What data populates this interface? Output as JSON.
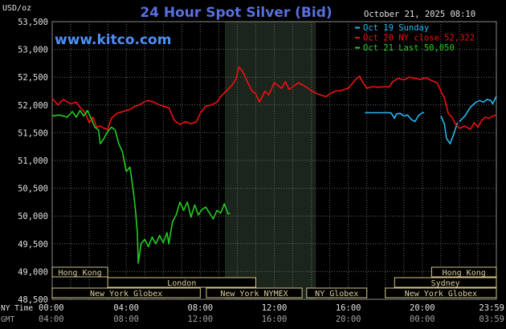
{
  "chart_data": {
    "type": "line",
    "title": "24 Hour Spot Silver (Bid)",
    "watermark": "www.kitco.com",
    "ylabel": "USD/oz",
    "date_label": "October 21, 2025 08:10",
    "ylim": [
      48500,
      53500
    ],
    "ytick_values": [
      48500,
      49000,
      49500,
      50000,
      50500,
      51000,
      51500,
      52000,
      52500,
      53000,
      53500
    ],
    "ytick_labels": [
      "48,500",
      "49,000",
      "49,500",
      "50,000",
      "50,500",
      "51,000",
      "51,500",
      "52,000",
      "52,500",
      "53,000",
      "53,500"
    ],
    "xlim": [
      0,
      24
    ],
    "x_unit": "hours (NY time)",
    "xtick_values": [
      0,
      4,
      8,
      12,
      16,
      20,
      24
    ],
    "row_labels": {
      "ny": "NY Time",
      "gmt": "GMT"
    },
    "xtick_labels_ny": [
      "00:00",
      "04:00",
      "08:00",
      "12:00",
      "16:00",
      "20:00",
      "23:59"
    ],
    "xtick_labels_gmt": [
      "04:00",
      "08:00",
      "12:00",
      "16:00",
      "20:00",
      "00:00",
      "03:59"
    ],
    "grid": true,
    "legend_position": "top-right",
    "nymex_shading": [
      9.33,
      14.25
    ],
    "colors": {
      "background": "#000000",
      "grid": "#666666",
      "axis_text": "#e0e0e0",
      "title": "#5a6fe0",
      "watermark": "#4f8ff5",
      "shading": "#1c251c",
      "session_fill": "#000000",
      "session_border": "#d2c48a",
      "session_text": "#d8cfa0"
    },
    "markets": [
      {
        "label": "Hong Kong",
        "start": 0,
        "end": 3,
        "row": 0
      },
      {
        "label": "London",
        "start": 3,
        "end": 11,
        "row": 1
      },
      {
        "label": "New York Globex",
        "start": 0,
        "end": 8,
        "row": 2
      },
      {
        "label": "New York NYMEX",
        "start": 8.33,
        "end": 13.5,
        "row": 2
      },
      {
        "label": "NY Globex",
        "start": 13.75,
        "end": 17,
        "row": 2
      },
      {
        "label": "Hong Kong",
        "start": 20.5,
        "end": 24,
        "row": 0
      },
      {
        "label": "Sydney",
        "start": 18.5,
        "end": 24,
        "row": 1
      },
      {
        "label": "New York Globex",
        "start": 18,
        "end": 24,
        "row": 2
      }
    ],
    "series": [
      {
        "name": "Oct 19 Sunday",
        "color": "#29b6f0",
        "segments": [
          [
            [
              16.9,
              51860
            ],
            [
              17.3,
              51860
            ],
            [
              17.6,
              51860
            ],
            [
              18.0,
              51860
            ],
            [
              18.3,
              51860
            ],
            [
              18.5,
              51760
            ],
            [
              18.6,
              51840
            ],
            [
              18.8,
              51850
            ],
            [
              19.0,
              51800
            ],
            [
              19.2,
              51820
            ],
            [
              19.4,
              51740
            ],
            [
              19.6,
              51700
            ],
            [
              19.8,
              51810
            ],
            [
              20.0,
              51860
            ],
            [
              20.1,
              51860
            ]
          ],
          [
            [
              21.0,
              51800
            ],
            [
              21.2,
              51650
            ],
            [
              21.3,
              51400
            ],
            [
              21.5,
              51300
            ],
            [
              21.7,
              51480
            ],
            [
              21.9,
              51680
            ]
          ],
          [
            [
              22.0,
              51700
            ],
            [
              22.3,
              51800
            ],
            [
              22.6,
              51960
            ],
            [
              22.9,
              52050
            ],
            [
              23.1,
              52080
            ],
            [
              23.3,
              52050
            ],
            [
              23.5,
              52100
            ],
            [
              23.7,
              52080
            ],
            [
              23.8,
              52020
            ],
            [
              24.0,
              52160
            ]
          ]
        ]
      },
      {
        "name": "Oct 20 NY close 52,322",
        "color": "#f01010",
        "segments": [
          [
            [
              0.0,
              52120
            ],
            [
              0.3,
              52000
            ],
            [
              0.6,
              52100
            ],
            [
              1.0,
              52020
            ],
            [
              1.3,
              52050
            ],
            [
              1.5,
              51960
            ],
            [
              1.8,
              51850
            ],
            [
              2.0,
              51680
            ],
            [
              2.2,
              51780
            ],
            [
              2.4,
              51600
            ],
            [
              2.6,
              51620
            ],
            [
              2.8,
              51580
            ],
            [
              3.0,
              51560
            ],
            [
              3.2,
              51760
            ],
            [
              3.5,
              51850
            ],
            [
              3.8,
              51880
            ],
            [
              4.0,
              51900
            ],
            [
              4.2,
              51920
            ],
            [
              4.5,
              51980
            ],
            [
              4.7,
              52000
            ],
            [
              5.0,
              52060
            ],
            [
              5.2,
              52080
            ],
            [
              5.5,
              52050
            ],
            [
              5.8,
              52000
            ],
            [
              6.0,
              51980
            ],
            [
              6.3,
              51950
            ],
            [
              6.6,
              51720
            ],
            [
              6.9,
              51650
            ],
            [
              7.2,
              51700
            ],
            [
              7.5,
              51660
            ],
            [
              7.8,
              51700
            ],
            [
              8.0,
              51850
            ],
            [
              8.3,
              51980
            ],
            [
              8.6,
              52000
            ],
            [
              8.9,
              52050
            ],
            [
              9.1,
              52150
            ],
            [
              9.4,
              52250
            ],
            [
              9.7,
              52350
            ],
            [
              9.9,
              52450
            ],
            [
              10.1,
              52680
            ],
            [
              10.3,
              52600
            ],
            [
              10.6,
              52380
            ],
            [
              10.8,
              52250
            ],
            [
              11.0,
              52200
            ],
            [
              11.2,
              52050
            ],
            [
              11.5,
              52250
            ],
            [
              11.7,
              52180
            ],
            [
              12.0,
              52400
            ],
            [
              12.2,
              52350
            ],
            [
              12.4,
              52300
            ],
            [
              12.6,
              52420
            ],
            [
              12.8,
              52280
            ],
            [
              13.1,
              52350
            ],
            [
              13.3,
              52400
            ],
            [
              13.6,
              52350
            ],
            [
              13.9,
              52280
            ],
            [
              14.2,
              52220
            ],
            [
              14.5,
              52180
            ],
            [
              14.8,
              52150
            ],
            [
              15.0,
              52200
            ],
            [
              15.3,
              52250
            ],
            [
              15.6,
              52260
            ],
            [
              15.8,
              52280
            ],
            [
              16.0,
              52300
            ],
            [
              16.2,
              52380
            ],
            [
              16.4,
              52460
            ],
            [
              16.6,
              52520
            ],
            [
              16.8,
              52400
            ],
            [
              17.0,
              52300
            ],
            [
              17.3,
              52330
            ],
            [
              17.6,
              52320
            ],
            [
              18.0,
              52330
            ],
            [
              18.2,
              52322
            ],
            [
              18.4,
              52420
            ],
            [
              18.7,
              52480
            ],
            [
              19.0,
              52450
            ],
            [
              19.3,
              52500
            ],
            [
              19.6,
              52480
            ],
            [
              19.9,
              52460
            ],
            [
              20.2,
              52490
            ],
            [
              20.5,
              52440
            ],
            [
              20.8,
              52400
            ],
            [
              21.0,
              52250
            ],
            [
              21.2,
              52120
            ],
            [
              21.4,
              51850
            ],
            [
              21.6,
              51780
            ],
            [
              21.8,
              51650
            ],
            [
              22.0,
              51580
            ],
            [
              22.3,
              51620
            ],
            [
              22.6,
              51560
            ],
            [
              22.8,
              51680
            ],
            [
              23.0,
              51600
            ],
            [
              23.2,
              51720
            ],
            [
              23.4,
              51780
            ],
            [
              23.6,
              51760
            ],
            [
              23.8,
              51800
            ],
            [
              24.0,
              51820
            ]
          ]
        ]
      },
      {
        "name": "Oct 21 Last 50,050",
        "color": "#22cc22",
        "segments": [
          [
            [
              0.0,
              51800
            ],
            [
              0.4,
              51820
            ],
            [
              0.8,
              51780
            ],
            [
              1.1,
              51880
            ],
            [
              1.3,
              51780
            ],
            [
              1.5,
              51900
            ],
            [
              1.7,
              51800
            ],
            [
              1.9,
              51900
            ],
            [
              2.1,
              51760
            ],
            [
              2.3,
              51600
            ],
            [
              2.5,
              51550
            ],
            [
              2.6,
              51300
            ],
            [
              2.8,
              51400
            ],
            [
              3.0,
              51520
            ],
            [
              3.2,
              51600
            ],
            [
              3.4,
              51550
            ],
            [
              3.6,
              51300
            ],
            [
              3.8,
              51150
            ],
            [
              4.0,
              50800
            ],
            [
              4.2,
              50880
            ],
            [
              4.3,
              50650
            ],
            [
              4.4,
              50400
            ],
            [
              4.5,
              50100
            ],
            [
              4.6,
              49700
            ],
            [
              4.65,
              49150
            ],
            [
              4.8,
              49500
            ],
            [
              5.0,
              49580
            ],
            [
              5.2,
              49450
            ],
            [
              5.4,
              49620
            ],
            [
              5.6,
              49500
            ],
            [
              5.8,
              49650
            ],
            [
              6.0,
              49520
            ],
            [
              6.2,
              49700
            ],
            [
              6.3,
              49500
            ],
            [
              6.5,
              49900
            ],
            [
              6.7,
              50020
            ],
            [
              6.9,
              50250
            ],
            [
              7.1,
              50100
            ],
            [
              7.3,
              50250
            ],
            [
              7.5,
              49980
            ],
            [
              7.7,
              50200
            ],
            [
              7.9,
              50020
            ],
            [
              8.1,
              50120
            ],
            [
              8.3,
              50160
            ],
            [
              8.5,
              50050
            ],
            [
              8.7,
              49950
            ],
            [
              8.9,
              50100
            ],
            [
              9.1,
              50050
            ],
            [
              9.3,
              50220
            ],
            [
              9.5,
              50040
            ],
            [
              9.6,
              50050
            ]
          ]
        ]
      }
    ]
  }
}
